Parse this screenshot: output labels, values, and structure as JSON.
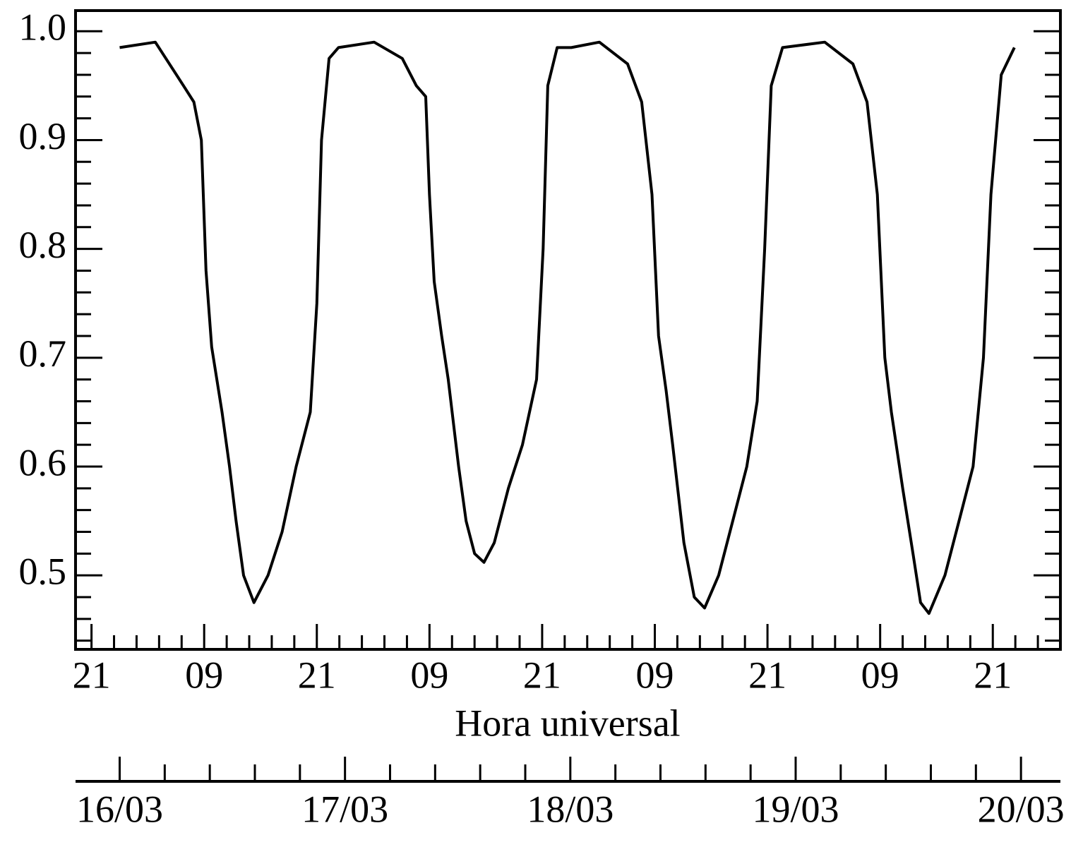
{
  "chart_data": {
    "type": "line",
    "x_label": "Hora universal",
    "series": [
      {
        "color": "#000000",
        "x": [
          24.0,
          27.8,
          30.8,
          31.9,
          32.7,
          33.2,
          33.8,
          34.9,
          35.7,
          36.4,
          37.2,
          38.3,
          39.8,
          41.3,
          42.8,
          44.3,
          45.0,
          45.5,
          46.3,
          47.3,
          51.1,
          54.1,
          55.6,
          56.6,
          57.0,
          57.5,
          58.3,
          59.0,
          60.1,
          60.9,
          61.8,
          62.8,
          63.9,
          65.4,
          66.9,
          68.4,
          69.1,
          69.6,
          70.6,
          72.1,
          75.1,
          78.1,
          79.6,
          80.7,
          81.4,
          82.2,
          82.9,
          84.1,
          85.2,
          86.3,
          87.8,
          89.3,
          90.8,
          91.9,
          92.7,
          93.4,
          94.6,
          99.1,
          102.1,
          103.6,
          104.7,
          105.5,
          106.2,
          107.4,
          108.5,
          109.3,
          110.2,
          111.9,
          113.4,
          114.9,
          116.0,
          116.8,
          117.9,
          119.3
        ],
        "values": [
          0.985,
          0.99,
          0.95,
          0.935,
          0.9,
          0.78,
          0.71,
          0.65,
          0.6,
          0.55,
          0.5,
          0.475,
          0.5,
          0.54,
          0.6,
          0.65,
          0.75,
          0.9,
          0.975,
          0.985,
          0.99,
          0.975,
          0.95,
          0.94,
          0.85,
          0.77,
          0.72,
          0.68,
          0.6,
          0.55,
          0.52,
          0.512,
          0.53,
          0.58,
          0.62,
          0.68,
          0.8,
          0.95,
          0.985,
          0.985,
          0.99,
          0.97,
          0.935,
          0.85,
          0.72,
          0.67,
          0.62,
          0.53,
          0.48,
          0.47,
          0.5,
          0.55,
          0.6,
          0.66,
          0.8,
          0.95,
          0.985,
          0.99,
          0.97,
          0.935,
          0.85,
          0.7,
          0.65,
          0.58,
          0.52,
          0.475,
          0.465,
          0.5,
          0.55,
          0.6,
          0.7,
          0.85,
          0.96,
          0.985
        ]
      }
    ],
    "xlim": [
      19.3,
      124.2
    ],
    "xticks": [
      {
        "value": 21,
        "label": "21"
      },
      {
        "value": 33,
        "label": "09"
      },
      {
        "value": 45,
        "label": "21"
      },
      {
        "value": 57,
        "label": "09"
      },
      {
        "value": 69,
        "label": "21"
      },
      {
        "value": 81,
        "label": "09"
      },
      {
        "value": 93,
        "label": "21"
      },
      {
        "value": 105,
        "label": "09"
      },
      {
        "value": 117,
        "label": "21"
      }
    ],
    "x2ticks": [
      {
        "value": 24,
        "label": "16/03"
      },
      {
        "value": 48,
        "label": "17/03"
      },
      {
        "value": 72,
        "label": "18/03"
      },
      {
        "value": 96,
        "label": "19/03"
      },
      {
        "value": 120,
        "label": "20/03"
      }
    ],
    "ylim": [
      0.432,
      1.019
    ],
    "yticks": [
      {
        "value": 0.5,
        "label": "0.5"
      },
      {
        "value": 0.6,
        "label": "0.6"
      },
      {
        "value": 0.7,
        "label": "0.7"
      },
      {
        "value": 0.8,
        "label": "0.8"
      },
      {
        "value": 0.9,
        "label": "0.9"
      },
      {
        "value": 1.0,
        "label": "1.0"
      }
    ]
  }
}
